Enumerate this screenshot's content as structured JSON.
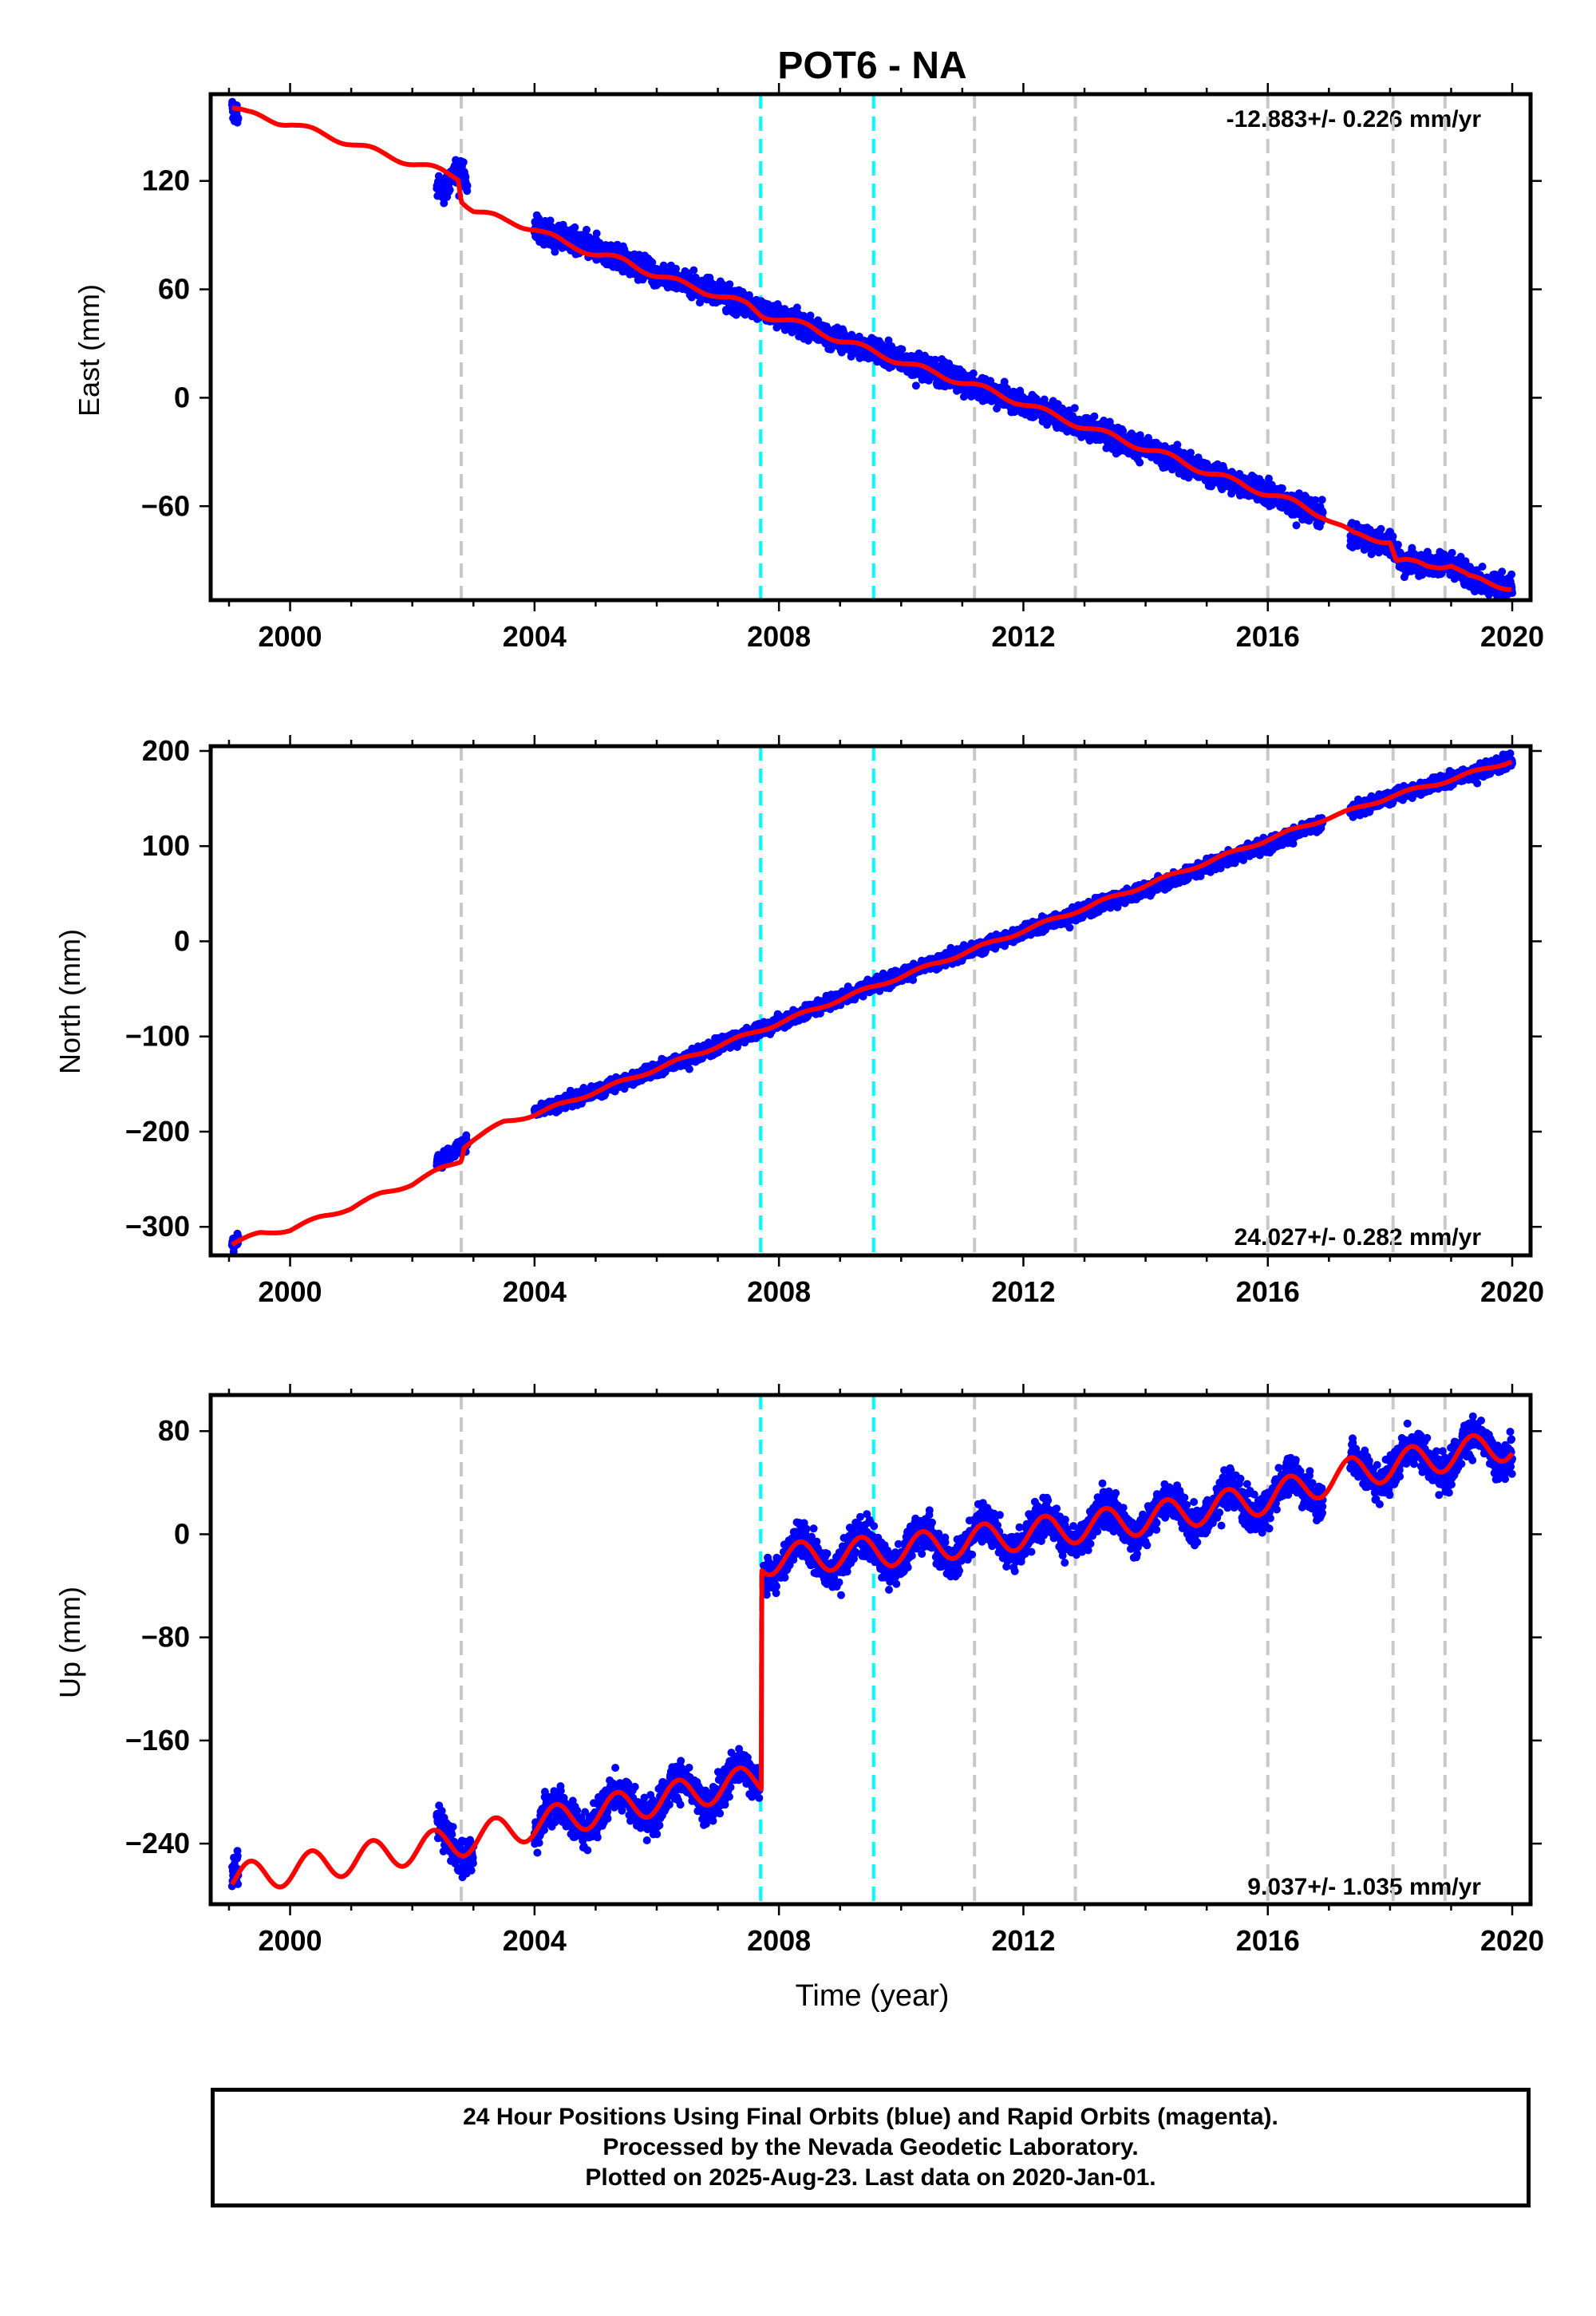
{
  "chart_data": [
    {
      "type": "scatter",
      "panel": "east",
      "title": "POT6 - NA",
      "ylabel": "East (mm)",
      "xlabel": "",
      "xlim": [
        1998.7,
        2020.3
      ],
      "ylim": [
        -112,
        168
      ],
      "xticks": [
        2000,
        2004,
        2008,
        2012,
        2016,
        2020
      ],
      "yticks": [
        -60,
        0,
        60,
        120
      ],
      "rate_label": "-12.883+/- 0.226 mm/yr",
      "rate_position": "top-right",
      "grid": false,
      "series": [
        {
          "style": "points",
          "color": "#0000ff",
          "segments": [
            [
              1999.05,
              1999.15
            ],
            [
              2002.4,
              2002.9
            ],
            [
              2004.0,
              2016.9
            ],
            [
              2017.35,
              2020.0
            ]
          ],
          "trend": [
            [
              1999.05,
              158
            ],
            [
              2002.5,
              115
            ],
            [
              2002.8,
              128
            ],
            [
              2003.0,
              103
            ],
            [
              2004.0,
              94
            ],
            [
              2005.0,
              82
            ],
            [
              2006.0,
              69
            ],
            [
              2007.0,
              58
            ],
            [
              2007.7,
              48
            ],
            [
              2008.0,
              45
            ],
            [
              2009.0,
              32
            ],
            [
              2010.0,
              21
            ],
            [
              2011.0,
              9
            ],
            [
              2012.0,
              -3
            ],
            [
              2013.0,
              -16
            ],
            [
              2014.0,
              -28
            ],
            [
              2015.0,
              -41
            ],
            [
              2016.0,
              -53
            ],
            [
              2016.9,
              -65
            ],
            [
              2017.4,
              -77
            ],
            [
              2018.0,
              -80
            ],
            [
              2018.2,
              -91
            ],
            [
              2019.0,
              -92
            ],
            [
              2019.4,
              -101
            ],
            [
              2020.0,
              -105
            ]
          ],
          "noise": 4.5
        },
        {
          "style": "line",
          "color": "#ff0000",
          "path": [
            [
              1999.05,
              161
            ],
            [
              1999.3,
              157
            ],
            [
              1999.8,
              153
            ],
            [
              2000.0,
              152
            ],
            [
              2000.5,
              146
            ],
            [
              2001.0,
              141
            ],
            [
              2001.5,
              135
            ],
            [
              2002.0,
              130
            ],
            [
              2002.5,
              125
            ],
            [
              2002.75,
              122
            ],
            [
              2002.8,
              110
            ],
            [
              2003.0,
              104
            ],
            [
              2003.5,
              98
            ],
            [
              2004.0,
              94
            ],
            [
              2004.5,
              85
            ],
            [
              2005.0,
              80
            ],
            [
              2005.5,
              75
            ],
            [
              2006.0,
              68
            ],
            [
              2006.5,
              62
            ],
            [
              2007.0,
              57
            ],
            [
              2007.5,
              51
            ],
            [
              2007.72,
              46
            ],
            [
              2008.0,
              44
            ],
            [
              2008.5,
              39
            ],
            [
              2009.0,
              32
            ],
            [
              2009.5,
              26
            ],
            [
              2010.0,
              20
            ],
            [
              2010.5,
              14
            ],
            [
              2011.0,
              9
            ],
            [
              2011.5,
              3
            ],
            [
              2012.0,
              -3
            ],
            [
              2012.5,
              -10
            ],
            [
              2013.0,
              -16
            ],
            [
              2013.5,
              -22
            ],
            [
              2014.0,
              -28
            ],
            [
              2014.5,
              -34
            ],
            [
              2015.0,
              -41
            ],
            [
              2015.5,
              -47
            ],
            [
              2016.0,
              -53
            ],
            [
              2016.5,
              -59
            ],
            [
              2016.9,
              -65
            ],
            [
              2017.4,
              -76
            ],
            [
              2018.0,
              -79
            ],
            [
              2018.1,
              -90
            ],
            [
              2018.6,
              -93
            ],
            [
              2019.0,
              -92
            ],
            [
              2019.3,
              -100
            ],
            [
              2020.0,
              -105
            ]
          ]
        }
      ],
      "vertical_lines": [
        {
          "x": 2002.8,
          "color": "#c8c8c8"
        },
        {
          "x": 2007.7,
          "color": "#00ffff"
        },
        {
          "x": 2009.55,
          "color": "#00ffff"
        },
        {
          "x": 2011.2,
          "color": "#c8c8c8"
        },
        {
          "x": 2012.85,
          "color": "#c8c8c8"
        },
        {
          "x": 2016.0,
          "color": "#c8c8c8"
        },
        {
          "x": 2018.05,
          "color": "#c8c8c8"
        },
        {
          "x": 2018.9,
          "color": "#c8c8c8"
        }
      ]
    },
    {
      "type": "scatter",
      "panel": "north",
      "ylabel": "North (mm)",
      "xlabel": "",
      "xlim": [
        1998.7,
        2020.3
      ],
      "ylim": [
        -330,
        205
      ],
      "xticks": [
        2000,
        2004,
        2008,
        2012,
        2016,
        2020
      ],
      "yticks": [
        -300,
        -200,
        -100,
        0,
        100,
        200
      ],
      "rate_label": "24.027+/- 0.282 mm/yr",
      "rate_position": "bottom-right",
      "grid": false,
      "series": [
        {
          "style": "points",
          "color": "#0000ff",
          "segments": [
            [
              1999.05,
              1999.15
            ],
            [
              2002.4,
              2002.9
            ],
            [
              2004.0,
              2016.9
            ],
            [
              2017.35,
              2020.0
            ]
          ],
          "trend": [
            [
              1999.05,
              -318
            ],
            [
              2002.5,
              -228
            ],
            [
              2002.9,
              -210
            ],
            [
              2004.0,
              -180
            ],
            [
              2006.0,
              -135
            ],
            [
              2008.0,
              -85
            ],
            [
              2010.0,
              -35
            ],
            [
              2012.0,
              10
            ],
            [
              2014.0,
              55
            ],
            [
              2016.0,
              102
            ],
            [
              2016.9,
              125
            ],
            [
              2018.0,
              152
            ],
            [
              2019.0,
              170
            ],
            [
              2020.0,
              190
            ]
          ],
          "noise": 5
        },
        {
          "style": "line",
          "color": "#ff0000",
          "path": [
            [
              1999.05,
              -318
            ],
            [
              1999.5,
              -307
            ],
            [
              2000.0,
              -303
            ],
            [
              2000.5,
              -290
            ],
            [
              2001.0,
              -280
            ],
            [
              2001.5,
              -265
            ],
            [
              2002.0,
              -255
            ],
            [
              2002.5,
              -238
            ],
            [
              2002.8,
              -230
            ],
            [
              2002.85,
              -215
            ],
            [
              2003.0,
              -208
            ],
            [
              2003.5,
              -190
            ],
            [
              2004.0,
              -182
            ],
            [
              2005.0,
              -158
            ],
            [
              2006.0,
              -134
            ],
            [
              2007.0,
              -110
            ],
            [
              2008.0,
              -86
            ],
            [
              2009.0,
              -61
            ],
            [
              2010.0,
              -37
            ],
            [
              2011.0,
              -13
            ],
            [
              2012.0,
              11
            ],
            [
              2013.0,
              35
            ],
            [
              2014.0,
              59
            ],
            [
              2015.0,
              83
            ],
            [
              2016.0,
              107
            ],
            [
              2016.9,
              128
            ],
            [
              2017.4,
              138
            ],
            [
              2018.0,
              152
            ],
            [
              2019.0,
              170
            ],
            [
              2020.0,
              190
            ]
          ]
        }
      ],
      "vertical_lines": [
        {
          "x": 2002.8,
          "color": "#c8c8c8"
        },
        {
          "x": 2007.7,
          "color": "#00ffff"
        },
        {
          "x": 2009.55,
          "color": "#00ffff"
        },
        {
          "x": 2011.2,
          "color": "#c8c8c8"
        },
        {
          "x": 2012.85,
          "color": "#c8c8c8"
        },
        {
          "x": 2016.0,
          "color": "#c8c8c8"
        },
        {
          "x": 2018.05,
          "color": "#c8c8c8"
        },
        {
          "x": 2018.9,
          "color": "#c8c8c8"
        }
      ]
    },
    {
      "type": "scatter",
      "panel": "up",
      "ylabel": "Up (mm)",
      "xlabel": "Time (year)",
      "xlim": [
        1998.7,
        2020.3
      ],
      "ylim": [
        -287,
        108
      ],
      "xticks": [
        2000,
        2004,
        2008,
        2012,
        2016,
        2020
      ],
      "yticks": [
        -240,
        -160,
        -80,
        0,
        80
      ],
      "rate_label": "9.037+/- 1.035 mm/yr",
      "rate_position": "bottom-right",
      "grid": false,
      "series": [
        {
          "style": "points",
          "color": "#0000ff",
          "segments": [
            [
              1999.05,
              1999.15
            ],
            [
              2002.4,
              2003.0
            ],
            [
              2004.0,
              2007.68
            ],
            [
              2007.75,
              2016.9
            ],
            [
              2017.35,
              2020.0
            ]
          ],
          "trend": [
            [
              1999.05,
              -262
            ],
            [
              2002.5,
              -235
            ],
            [
              2003.0,
              -240
            ],
            [
              2004.0,
              -225
            ],
            [
              2007.68,
              -190
            ],
            [
              2007.75,
              -20
            ],
            [
              2010.0,
              -12
            ],
            [
              2012.0,
              0
            ],
            [
              2014.0,
              12
            ],
            [
              2016.0,
              28
            ],
            [
              2017.4,
              48
            ],
            [
              2020.0,
              70
            ]
          ],
          "seasonal": 13,
          "noise": 10
        },
        {
          "style": "line",
          "color": "#ff0000",
          "path_trend": [
            [
              1999.05,
              -268
            ],
            [
              2002.8,
              -238
            ],
            [
              2004.0,
              -225
            ],
            [
              2007.7,
              -190
            ],
            [
              2007.72,
              -20
            ],
            [
              2010.0,
              -12
            ],
            [
              2012.0,
              0
            ],
            [
              2014.0,
              12
            ],
            [
              2016.0,
              28
            ],
            [
              2017.4,
              48
            ],
            [
              2020.0,
              70
            ]
          ],
          "seasonal": 12,
          "step_x": 2007.71
        }
      ],
      "vertical_lines": [
        {
          "x": 2002.8,
          "color": "#c8c8c8"
        },
        {
          "x": 2007.7,
          "color": "#00ffff"
        },
        {
          "x": 2009.55,
          "color": "#00ffff"
        },
        {
          "x": 2011.2,
          "color": "#c8c8c8"
        },
        {
          "x": 2012.85,
          "color": "#c8c8c8"
        },
        {
          "x": 2016.0,
          "color": "#c8c8c8"
        },
        {
          "x": 2018.05,
          "color": "#c8c8c8"
        },
        {
          "x": 2018.9,
          "color": "#c8c8c8"
        }
      ]
    }
  ],
  "footer": {
    "line1": "24 Hour Positions Using Final Orbits (blue) and Rapid Orbits (magenta).",
    "line2": "Processed by the Nevada Geodetic Laboratory.",
    "line3": "Plotted on 2025-Aug-23. Last data on 2020-Jan-01."
  }
}
